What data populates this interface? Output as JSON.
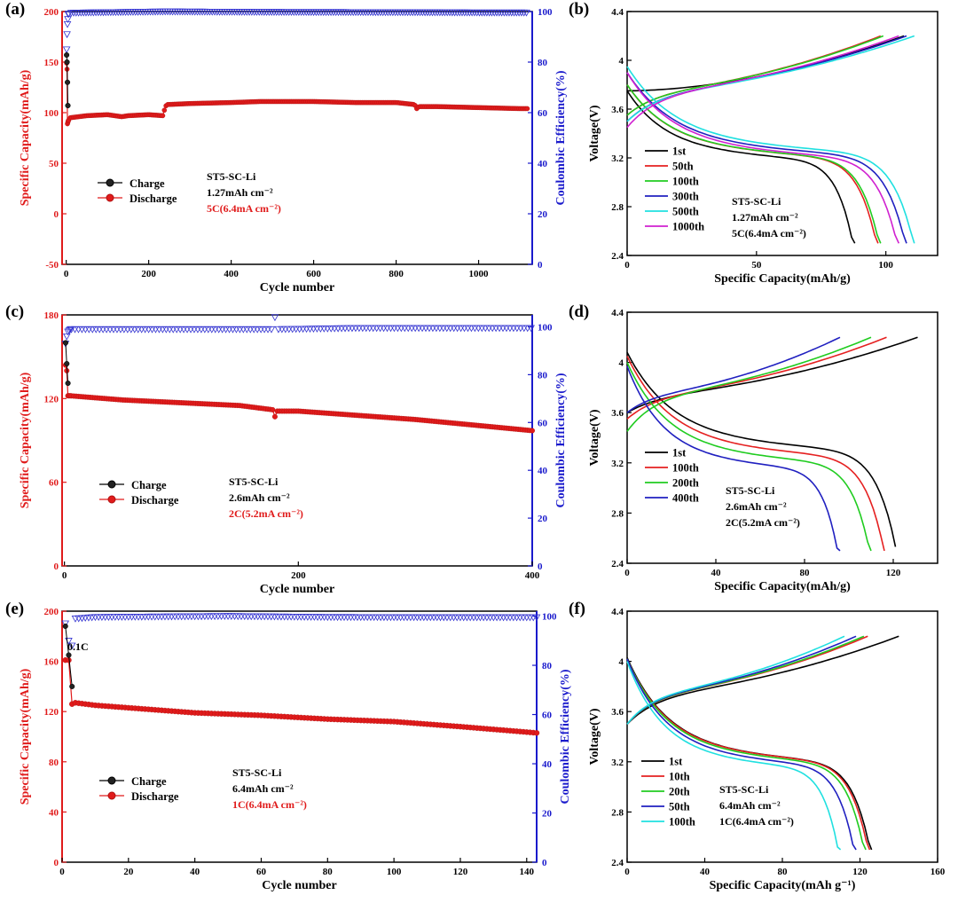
{
  "colors": {
    "charge": "#000000",
    "discharge": "#e01b1b",
    "ce": "#3030d0",
    "left_axis": "#e01b1b",
    "right_axis": "#1a1acc"
  },
  "chart_data": [
    {
      "id": "a",
      "type": "line",
      "panel_label": "(a)",
      "xlabel": "Cycle number",
      "ylabel": "Specific Capacity(mAh/g)",
      "y2label": "Coulombic Efficiency(%)",
      "xlim": [
        -10,
        1130
      ],
      "ylim": [
        -50,
        200
      ],
      "y2lim": [
        0,
        100
      ],
      "xticks": [
        0,
        200,
        400,
        600,
        800,
        1000
      ],
      "yticks": [
        -50,
        0,
        50,
        100,
        150,
        200
      ],
      "y2ticks": [
        0,
        20,
        40,
        60,
        80,
        100
      ],
      "legend": [
        "Charge",
        "Discharge"
      ],
      "annotations": [
        "ST5-SC-Li",
        "1.27mAh cm⁻²",
        "5C(6.4mA cm⁻²)"
      ],
      "series": [
        {
          "name": "Charge",
          "x": [
            1,
            2,
            3,
            4
          ],
          "y": [
            157,
            150,
            130,
            107
          ]
        },
        {
          "name": "Discharge",
          "x": [
            1,
            2,
            3,
            5,
            10,
            50,
            100,
            135,
            150,
            200,
            235,
            240,
            245,
            300,
            400,
            470,
            600,
            700,
            800,
            845,
            850,
            855,
            900,
            1000,
            1100,
            1120
          ],
          "y": [
            149,
            143,
            89,
            92,
            95,
            97,
            98,
            96,
            97,
            98,
            97,
            106,
            108,
            109,
            110,
            111,
            111,
            110,
            110,
            108,
            104,
            106,
            106,
            105,
            104,
            104
          ]
        },
        {
          "name": "Coulombic Efficiency",
          "axis": "right",
          "x": [
            1,
            2,
            3,
            5,
            10,
            50,
            240,
            500,
            850,
            1000,
            1120
          ],
          "y": [
            85,
            91,
            95,
            99,
            99.5,
            99.6,
            100,
            99.8,
            99.7,
            99.6,
            99.6
          ]
        }
      ]
    },
    {
      "id": "b",
      "type": "line",
      "panel_label": "(b)",
      "xlabel": "Specific Capacity(mAh/g)",
      "ylabel": "Voltage(V)",
      "xlim": [
        0,
        120
      ],
      "ylim": [
        2.4,
        4.4
      ],
      "xticks": [
        0,
        50,
        100
      ],
      "yticks": [
        2.4,
        2.8,
        3.2,
        3.6,
        4.0,
        4.4
      ],
      "legend": [
        "1st",
        "50th",
        "100th",
        "300th",
        "500th",
        "1000th"
      ],
      "annotations": [
        "ST5-SC-Li",
        "1.27mAh cm⁻²",
        "5C(6.4mA cm⁻²)"
      ],
      "series": [
        {
          "name": "1st",
          "color": "#000000",
          "charge_end": 107,
          "discharge_end": 88,
          "c0": 3.75,
          "d0": 3.75,
          "dp": 3.28
        },
        {
          "name": "50th",
          "color": "#e52020",
          "charge_end": 98,
          "discharge_end": 97,
          "c0": 3.55,
          "d0": 3.8,
          "dp": 3.3
        },
        {
          "name": "100th",
          "color": "#20cc20",
          "charge_end": 99,
          "discharge_end": 98,
          "c0": 3.55,
          "d0": 3.8,
          "dp": 3.3
        },
        {
          "name": "300th",
          "color": "#2020c0",
          "charge_end": 108,
          "discharge_end": 108,
          "c0": 3.5,
          "d0": 3.9,
          "dp": 3.32
        },
        {
          "name": "500th",
          "color": "#20e0e0",
          "charge_end": 111,
          "discharge_end": 111,
          "c0": 3.5,
          "d0": 3.95,
          "dp": 3.34
        },
        {
          "name": "1000th",
          "color": "#d020d0",
          "charge_end": 105,
          "discharge_end": 105,
          "c0": 3.45,
          "d0": 3.9,
          "dp": 3.3
        }
      ]
    },
    {
      "id": "c",
      "type": "line",
      "panel_label": "(c)",
      "xlabel": "Cycle number",
      "ylabel": "Specific Capacity(mAh/g)",
      "y2label": "Coulombic Efficiency(%)",
      "xlim": [
        -2,
        400
      ],
      "ylim": [
        0,
        180
      ],
      "y2lim": [
        0,
        105
      ],
      "xticks": [
        0,
        200,
        400
      ],
      "yticks": [
        0,
        60,
        120,
        180
      ],
      "y2ticks": [
        0,
        20,
        40,
        60,
        80,
        100
      ],
      "legend": [
        "Charge",
        "Discharge"
      ],
      "annotations": [
        "ST5-SC-Li",
        "2.6mAh cm⁻²",
        "2C(5.2mA cm⁻²)"
      ],
      "series": [
        {
          "name": "Charge",
          "x": [
            1,
            2,
            3
          ],
          "y": [
            160,
            145,
            131
          ]
        },
        {
          "name": "Discharge",
          "x": [
            1,
            2,
            3,
            5,
            50,
            100,
            150,
            178,
            180,
            182,
            200,
            250,
            300,
            350,
            400
          ],
          "y": [
            144,
            140,
            122,
            122,
            119,
            117,
            115,
            112,
            107,
            111,
            111,
            108,
            105,
            101,
            97
          ]
        },
        {
          "name": "Coulombic Efficiency",
          "axis": "right",
          "x": [
            1,
            2,
            3,
            5,
            100,
            178,
            180,
            182,
            250,
            400
          ],
          "y": [
            93,
            96,
            98,
            99,
            99,
            99,
            104,
            99,
            99.5,
            99.5
          ]
        }
      ]
    },
    {
      "id": "d",
      "type": "line",
      "panel_label": "(d)",
      "xlabel": "Specific Capacity(mAh/g)",
      "ylabel": "Voltage(V)",
      "xlim": [
        0,
        140
      ],
      "ylim": [
        2.4,
        4.4
      ],
      "xticks": [
        0,
        40,
        80,
        120
      ],
      "yticks": [
        2.4,
        2.8,
        3.2,
        3.6,
        4.0,
        4.4
      ],
      "legend": [
        "1st",
        "100th",
        "200th",
        "400th"
      ],
      "annotations": [
        "ST5-SC-Li",
        "2.6mAh cm⁻²",
        "2C(5.2mA cm⁻²)"
      ],
      "series": [
        {
          "name": "1st",
          "color": "#000000",
          "charge_end": 131,
          "discharge_end": 121,
          "c0": 3.6,
          "d0": 4.08,
          "dp": 3.4
        },
        {
          "name": "100th",
          "color": "#e52020",
          "charge_end": 117,
          "discharge_end": 116,
          "c0": 3.55,
          "d0": 4.05,
          "dp": 3.35
        },
        {
          "name": "200th",
          "color": "#20cc20",
          "charge_end": 110,
          "discharge_end": 110,
          "c0": 3.45,
          "d0": 4.0,
          "dp": 3.3
        },
        {
          "name": "400th",
          "color": "#2020c0",
          "charge_end": 96,
          "discharge_end": 96,
          "c0": 3.6,
          "d0": 3.97,
          "dp": 3.25
        }
      ]
    },
    {
      "id": "e",
      "type": "line",
      "panel_label": "(e)",
      "xlabel": "Cycle number",
      "ylabel": "Specific Capacity(mAh/g)",
      "y2label": "Coulombic Efficiency(%)",
      "xlim": [
        0,
        143
      ],
      "ylim": [
        0,
        200
      ],
      "y2lim": [
        0,
        102
      ],
      "xticks": [
        0,
        20,
        40,
        60,
        80,
        100,
        120,
        140
      ],
      "yticks": [
        0,
        40,
        80,
        120,
        160,
        200
      ],
      "y2ticks": [
        0,
        20,
        40,
        60,
        80,
        100
      ],
      "legend": [
        "Charge",
        "Discharge"
      ],
      "annotations": [
        "ST5-SC-Li",
        "6.4mAh cm⁻²",
        "1C(6.4mA cm⁻²)",
        "0.1C"
      ],
      "series": [
        {
          "name": "Charge",
          "x": [
            1,
            2,
            3
          ],
          "y": [
            188,
            165,
            140
          ]
        },
        {
          "name": "Discharge",
          "x": [
            1,
            2,
            3,
            4,
            10,
            20,
            40,
            50,
            60,
            80,
            100,
            120,
            143
          ],
          "y": [
            161,
            161,
            126,
            127,
            125,
            123,
            119,
            118,
            117,
            114,
            112,
            108,
            103
          ]
        },
        {
          "name": "Coulombic Efficiency",
          "axis": "right",
          "x": [
            1,
            2,
            3,
            4,
            10,
            50,
            80,
            120,
            143
          ],
          "y": [
            97,
            90,
            88,
            99,
            99.6,
            100,
            99.6,
            99.5,
            99.5
          ]
        }
      ]
    },
    {
      "id": "f",
      "type": "line",
      "panel_label": "(f)",
      "xlabel": "Specific Capacity(mAh g⁻¹)",
      "ylabel": "Voltage(V)",
      "xlim": [
        0,
        160
      ],
      "ylim": [
        2.4,
        4.4
      ],
      "xticks": [
        0,
        40,
        80,
        120,
        160
      ],
      "yticks": [
        2.4,
        2.8,
        3.2,
        3.6,
        4.0,
        4.4
      ],
      "legend": [
        "1st",
        "10th",
        "20th",
        "50th",
        "100th"
      ],
      "annotations": [
        "ST5-SC-Li",
        "6.4mAh cm⁻²",
        "1C(6.4mA cm⁻²)"
      ],
      "series": [
        {
          "name": "1st",
          "color": "#000000",
          "charge_end": 140,
          "discharge_end": 126,
          "c0": 3.5,
          "d0": 4.03,
          "dp": 3.3
        },
        {
          "name": "10th",
          "color": "#e52020",
          "charge_end": 124,
          "discharge_end": 125,
          "c0": 3.5,
          "d0": 4.02,
          "dp": 3.3
        },
        {
          "name": "20th",
          "color": "#20cc20",
          "charge_end": 122,
          "discharge_end": 123,
          "c0": 3.5,
          "d0": 4.02,
          "dp": 3.29
        },
        {
          "name": "50th",
          "color": "#2020c0",
          "charge_end": 118,
          "discharge_end": 118,
          "c0": 3.5,
          "d0": 4.02,
          "dp": 3.27
        },
        {
          "name": "100th",
          "color": "#20e0e0",
          "charge_end": 112,
          "discharge_end": 110,
          "c0": 3.5,
          "d0": 4.0,
          "dp": 3.25
        }
      ]
    }
  ]
}
